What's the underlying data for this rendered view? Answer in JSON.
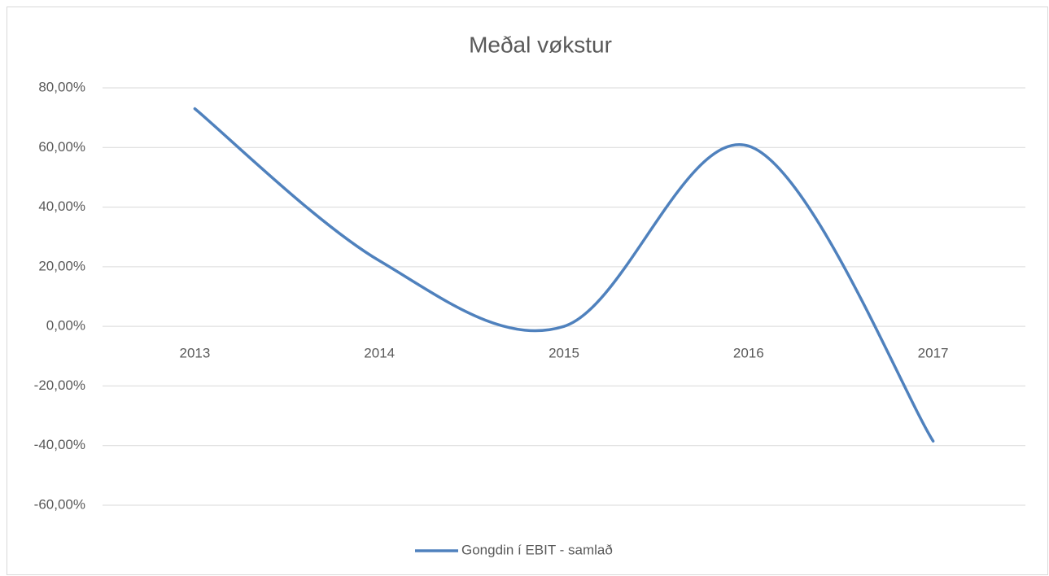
{
  "chart_data": {
    "type": "line",
    "title": "Meðal vøkstur",
    "categories": [
      "2013",
      "2014",
      "2015",
      "2016",
      "2017"
    ],
    "series": [
      {
        "name": "Gongdin í EBIT - samlað",
        "color": "#4f81bd",
        "values": [
          73,
          22,
          0,
          60.5,
          -38.5
        ]
      }
    ],
    "ylim": [
      -60,
      80
    ],
    "yticks": [
      {
        "value": -60,
        "label": "-60,00%"
      },
      {
        "value": -40,
        "label": "-40,00%"
      },
      {
        "value": -20,
        "label": "-20,00%"
      },
      {
        "value": 0,
        "label": "0,00%"
      },
      {
        "value": 20,
        "label": "20,00%"
      },
      {
        "value": 40,
        "label": "40,00%"
      },
      {
        "value": 60,
        "label": "60,00%"
      },
      {
        "value": 80,
        "label": "80,00%"
      }
    ],
    "grid": true,
    "smooth": true,
    "legend": "bottom"
  }
}
